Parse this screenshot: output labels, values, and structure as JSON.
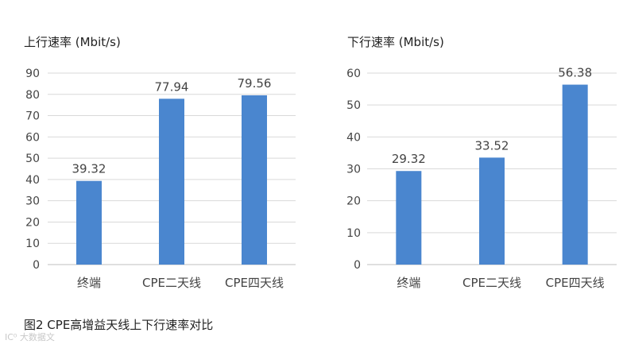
{
  "caption": "图2 CPE高增益天线上下行速率对比",
  "watermark": "IC⁰ 大数据文",
  "colors": {
    "bar": "#4a86cf",
    "grid": "#d9d9d9",
    "axis": "#bfbfbf",
    "text": "#444444"
  },
  "chart_data": [
    {
      "type": "bar",
      "title": "上行速率 (Mbit/s)",
      "categories": [
        "终端",
        "CPE二天线",
        "CPE四天线"
      ],
      "values": [
        39.32,
        77.94,
        79.56
      ],
      "data_labels": [
        "39.32",
        "77.94",
        "79.56"
      ],
      "ylim": [
        0,
        90
      ],
      "yticks": [
        0,
        10,
        20,
        30,
        40,
        50,
        60,
        70,
        80,
        90
      ],
      "grid": true,
      "xlabel": "",
      "ylabel": ""
    },
    {
      "type": "bar",
      "title": "下行速率 (Mbit/s)",
      "categories": [
        "终端",
        "CPE二天线",
        "CPE四天线"
      ],
      "values": [
        29.32,
        33.52,
        56.38
      ],
      "data_labels": [
        "29.32",
        "33.52",
        "56.38"
      ],
      "ylim": [
        0,
        60
      ],
      "yticks": [
        0,
        10,
        20,
        30,
        40,
        50,
        60
      ],
      "grid": true,
      "xlabel": "",
      "ylabel": ""
    }
  ]
}
